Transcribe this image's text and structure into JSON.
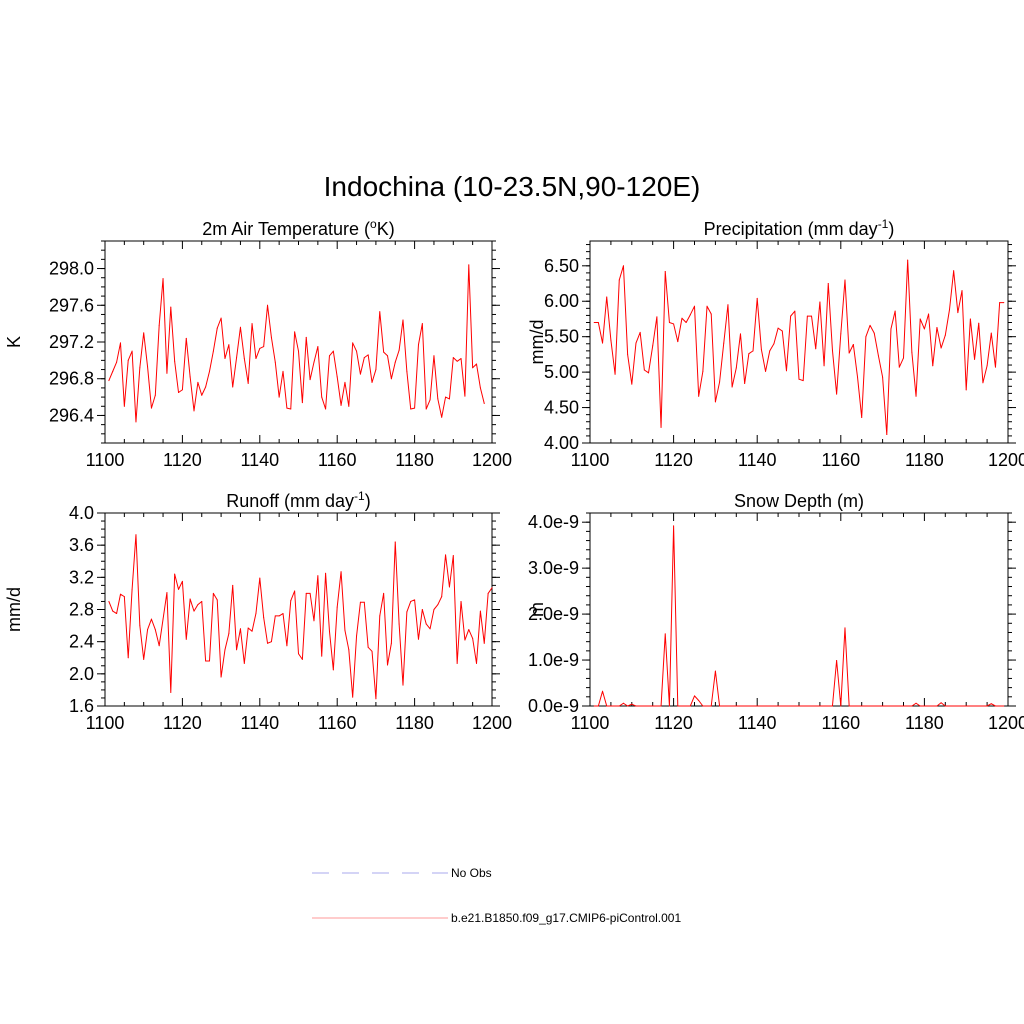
{
  "figure_title": "Indochina (10-23.5N,90-120E)",
  "legend": {
    "obs_label": "No Obs",
    "obs_color": "#aaaaee",
    "model_label": "b.e21.B1850.f09_g17.CMIP6-piControl.001",
    "model_color": "#ff9999"
  },
  "chart_data": [
    {
      "id": "temp",
      "type": "line",
      "title": "2m Air Temperature (",
      "title_sup": "o",
      "title_after": "K)",
      "ylabel": "K",
      "xlim": [
        1100,
        1200
      ],
      "ylim": [
        296.1,
        298.3
      ],
      "xticks": [
        "1100",
        "1120",
        "1140",
        "1160",
        "1180",
        "1200"
      ],
      "yticks": [
        296.4,
        296.8,
        297.2,
        297.6,
        298.0
      ],
      "ytick_labels": [
        "296.4",
        "296.8",
        "297.2",
        "297.6",
        "298.0"
      ],
      "yminor_step": 0.1,
      "color": "#ff0000",
      "series": [
        {
          "name": "b.e21.B1850.f09_g17.CMIP6-piControl.001",
          "x_start": 1101,
          "x_step": 1,
          "values": [
            296.78,
            296.88,
            296.98,
            297.19,
            296.5,
            297.0,
            297.1,
            296.33,
            296.92,
            297.3,
            296.93,
            296.48,
            296.62,
            297.38,
            297.89,
            296.86,
            297.58,
            296.99,
            296.65,
            296.68,
            297.24,
            296.82,
            296.45,
            296.76,
            296.62,
            296.71,
            296.88,
            297.1,
            297.35,
            297.46,
            297.02,
            297.17,
            296.71,
            297.03,
            297.36,
            297.02,
            296.75,
            297.4,
            297.02,
            297.13,
            297.15,
            297.6,
            297.25,
            296.98,
            296.6,
            296.88,
            296.48,
            296.47,
            297.31,
            297.1,
            296.54,
            297.25,
            296.79,
            296.98,
            297.15,
            296.6,
            296.47,
            297.05,
            297.1,
            296.82,
            296.51,
            296.76,
            296.5,
            297.19,
            297.1,
            296.85,
            297.03,
            297.06,
            296.76,
            296.9,
            297.53,
            297.09,
            297.05,
            296.8,
            296.98,
            297.11,
            297.44,
            296.88,
            296.47,
            296.48,
            297.17,
            297.4,
            296.47,
            296.57,
            297.05,
            296.58,
            296.38,
            296.6,
            296.58,
            297.03,
            296.99,
            297.02,
            296.61,
            298.04,
            296.92,
            296.96,
            296.7,
            296.53
          ]
        }
      ]
    },
    {
      "id": "precip",
      "type": "line",
      "title": "Precipitation (mm day",
      "title_sup": "-1",
      "title_after": ")",
      "ylabel": "mm/d",
      "xlim": [
        1100,
        1200
      ],
      "ylim": [
        4.0,
        6.85
      ],
      "xticks": [
        "1100",
        "1120",
        "1140",
        "1160",
        "1180",
        "1200"
      ],
      "yticks": [
        4.0,
        4.5,
        5.0,
        5.5,
        6.0,
        6.5
      ],
      "ytick_labels": [
        "4.00",
        "4.50",
        "5.00",
        "5.50",
        "6.00",
        "6.50"
      ],
      "yminor_step": 0.1,
      "color": "#ff0000",
      "series": [
        {
          "name": "b.e21.B1850.f09_g17.CMIP6-piControl.001",
          "x_start": 1101,
          "x_step": 1,
          "values": [
            5.7,
            5.7,
            5.41,
            6.06,
            5.45,
            4.97,
            6.3,
            6.5,
            5.25,
            4.83,
            5.41,
            5.56,
            5.03,
            4.99,
            5.37,
            5.78,
            4.22,
            6.42,
            5.7,
            5.68,
            5.43,
            5.76,
            5.7,
            5.81,
            5.93,
            4.66,
            5.01,
            5.93,
            5.82,
            4.58,
            4.86,
            5.41,
            5.95,
            4.79,
            5.06,
            5.54,
            4.84,
            5.26,
            5.3,
            6.04,
            5.32,
            5.01,
            5.3,
            5.4,
            5.62,
            5.58,
            5.02,
            5.79,
            5.86,
            4.9,
            4.88,
            5.79,
            5.79,
            5.33,
            5.99,
            5.09,
            6.25,
            5.31,
            4.69,
            5.54,
            6.3,
            5.27,
            5.39,
            4.93,
            4.36,
            5.5,
            5.66,
            5.55,
            5.23,
            4.93,
            4.12,
            5.61,
            5.86,
            5.07,
            5.2,
            6.58,
            5.28,
            4.66,
            5.75,
            5.61,
            5.82,
            5.09,
            5.63,
            5.34,
            5.52,
            5.88,
            6.43,
            5.84,
            6.15,
            4.75,
            5.75,
            5.18,
            5.69,
            4.85,
            5.09,
            5.55,
            5.07,
            5.98,
            5.98
          ]
        }
      ]
    },
    {
      "id": "runoff",
      "type": "line",
      "title": "Runoff (mm day",
      "title_sup": "-1",
      "title_after": ")",
      "ylabel": "mm/d",
      "xlim": [
        1100,
        1200
      ],
      "ylim": [
        1.6,
        4.0
      ],
      "xticks": [
        "1100",
        "1120",
        "1140",
        "1160",
        "1180",
        "1200"
      ],
      "yticks": [
        1.6,
        2.0,
        2.4,
        2.8,
        3.2,
        3.6,
        4.0
      ],
      "ytick_labels": [
        "1.6",
        "2.0",
        "2.4",
        "2.8",
        "3.2",
        "3.6",
        "4.0"
      ],
      "yminor_step": 0.1,
      "color": "#ff0000",
      "series": [
        {
          "name": "b.e21.B1850.f09_g17.CMIP6-piControl.001",
          "x_start": 1101,
          "x_step": 1,
          "values": [
            2.9,
            2.78,
            2.75,
            2.99,
            2.96,
            2.2,
            3.05,
            3.73,
            2.6,
            2.18,
            2.55,
            2.68,
            2.55,
            2.35,
            2.68,
            3.01,
            1.77,
            3.24,
            3.05,
            3.15,
            2.43,
            2.93,
            2.78,
            2.86,
            2.9,
            2.16,
            2.16,
            3.0,
            2.92,
            1.96,
            2.3,
            2.5,
            3.1,
            2.3,
            2.56,
            2.13,
            2.57,
            2.53,
            2.75,
            3.19,
            2.7,
            2.38,
            2.4,
            2.72,
            2.72,
            2.75,
            2.35,
            2.91,
            3.03,
            2.25,
            2.18,
            3.0,
            3.0,
            2.66,
            3.22,
            2.22,
            3.25,
            2.53,
            2.05,
            2.83,
            3.27,
            2.54,
            2.3,
            1.71,
            2.47,
            2.89,
            2.89,
            2.33,
            2.28,
            1.69,
            2.72,
            3.0,
            2.11,
            2.38,
            3.64,
            2.62,
            1.86,
            2.77,
            2.9,
            2.92,
            2.43,
            2.8,
            2.62,
            2.56,
            2.8,
            2.86,
            2.96,
            3.48,
            3.08,
            3.47,
            2.13,
            2.9,
            2.42,
            2.55,
            2.44,
            2.13,
            2.78,
            2.38,
            3.0,
            3.07
          ]
        }
      ]
    },
    {
      "id": "snow",
      "type": "line",
      "title": "Snow Depth (m)",
      "title_sup": "",
      "title_after": "",
      "ylabel": "m",
      "xlim": [
        1100,
        1200
      ],
      "ylim": [
        0,
        4.2
      ],
      "y_unit": "1e-9",
      "xticks": [
        "1100",
        "1120",
        "1140",
        "1160",
        "1180",
        "1200"
      ],
      "yticks": [
        0,
        1,
        2,
        3,
        4
      ],
      "ytick_labels": [
        "0.0e-9",
        "1.0e-9",
        "2.0e-9",
        "3.0e-9",
        "4.0e-9"
      ],
      "yminor_step": 0.2,
      "color": "#ff0000",
      "series": [
        {
          "name": "b.e21.B1850.f09_g17.CMIP6-piControl.001",
          "x_start": 1101,
          "x_step": 1,
          "values": [
            0,
            0,
            0.32,
            0,
            0,
            0,
            0,
            0.06,
            0,
            0.04,
            0,
            0,
            0,
            0,
            0,
            0,
            0,
            1.57,
            0,
            3.92,
            0,
            0,
            0,
            0,
            0.22,
            0.12,
            0,
            0,
            0,
            0.76,
            0,
            0,
            0,
            0,
            0,
            0,
            0,
            0,
            0,
            0,
            0,
            0,
            0,
            0,
            0,
            0,
            0,
            0,
            0,
            0,
            0,
            0,
            0,
            0,
            0,
            0,
            0,
            0,
            0.99,
            0,
            1.7,
            0,
            0,
            0,
            0,
            0,
            0,
            0,
            0,
            0,
            0,
            0,
            0,
            0,
            0,
            0,
            0,
            0.06,
            0,
            0,
            0,
            0,
            0,
            0.07,
            0,
            0,
            0,
            0,
            0,
            0,
            0,
            0,
            0,
            0,
            0,
            0.05,
            0,
            0,
            0
          ]
        }
      ]
    }
  ]
}
